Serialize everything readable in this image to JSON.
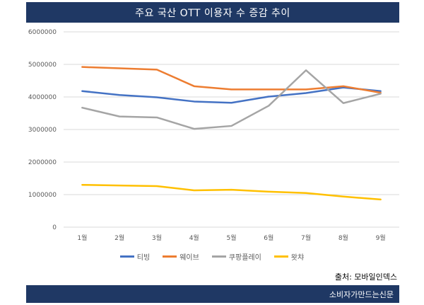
{
  "header": {
    "title": "주요 국산 OTT 이용자 수 증감 추이"
  },
  "source": "출처: 모바일인덱스",
  "footer": {
    "brand": "소비자가만드는신문"
  },
  "chart_data": {
    "type": "line",
    "title": "주요 국산 OTT 이용자 수 증감 추이",
    "categories": [
      "1월",
      "2월",
      "3월",
      "4월",
      "5월",
      "6월",
      "7월",
      "8월",
      "9월"
    ],
    "yticks": [
      "0",
      "1000000",
      "2000000",
      "3000000",
      "4000000",
      "5000000",
      "6000000"
    ],
    "ylim": [
      0,
      6000000
    ],
    "grid": true,
    "legend": "bottom",
    "series": [
      {
        "name": "티빙",
        "color": "#4472c4",
        "values": [
          4180000,
          4060000,
          3990000,
          3860000,
          3820000,
          4010000,
          4120000,
          4290000,
          4180000
        ]
      },
      {
        "name": "웨이브",
        "color": "#ed7d31",
        "values": [
          4920000,
          4880000,
          4840000,
          4330000,
          4230000,
          4230000,
          4230000,
          4330000,
          4130000
        ]
      },
      {
        "name": "쿠팡플레이",
        "color": "#a5a5a5",
        "values": [
          3670000,
          3400000,
          3370000,
          3020000,
          3110000,
          3730000,
          4820000,
          3810000,
          4100000
        ]
      },
      {
        "name": "왓챠",
        "color": "#ffc000",
        "values": [
          1300000,
          1280000,
          1260000,
          1130000,
          1150000,
          1090000,
          1050000,
          940000,
          850000
        ]
      }
    ]
  }
}
